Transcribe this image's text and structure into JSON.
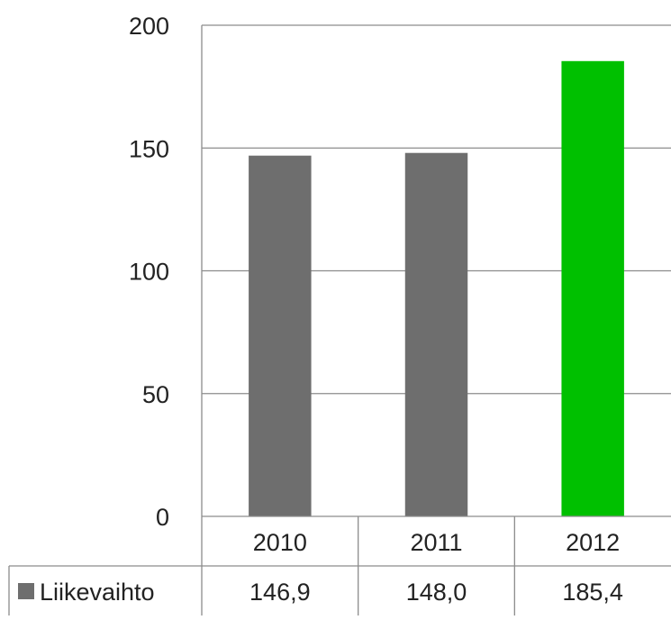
{
  "chart_data": {
    "type": "bar",
    "title": "",
    "xlabel": "",
    "ylabel": "",
    "ylim": [
      0,
      200
    ],
    "yticks": [
      0,
      50,
      100,
      150,
      200
    ],
    "grid": true,
    "categories": [
      "2010",
      "2011",
      "2012"
    ],
    "series": [
      {
        "name": "Liikevaihto",
        "values": [
          146.9,
          148.0,
          185.4
        ],
        "value_labels": [
          "146,9",
          "148,0",
          "185,4"
        ],
        "colors": [
          "#6e6e6e",
          "#6e6e6e",
          "#00c000"
        ]
      }
    ],
    "legend": {
      "placement": "data-table-left",
      "swatch_color": "#6e6e6e"
    },
    "data_table": true,
    "colors": {
      "bar_default": "#6e6e6e",
      "bar_highlight": "#00c000",
      "grid": "#8c8c8c",
      "table_border": "#8c8c8c",
      "text": "#222222"
    }
  }
}
